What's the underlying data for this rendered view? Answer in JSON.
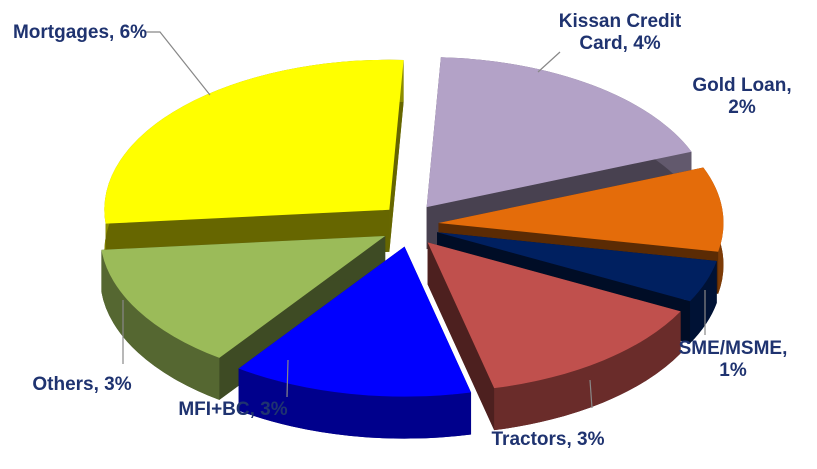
{
  "chart_data": {
    "type": "pie",
    "values": [
      4,
      2,
      1,
      3,
      3,
      3,
      6
    ],
    "value_labels": [
      "Kissan Credit Card, 4%",
      "Gold Loan, 2%",
      "SME/MSME, 1%",
      "Tractors, 3%",
      "MFI+BC, 3%",
      "Others, 3%",
      "Mortgages, 6%"
    ],
    "colors": [
      "#b3a2c7",
      "#e46c0a",
      "#002060",
      "#c0504d",
      "#0000ff",
      "#9bbb59",
      "#ffff00"
    ]
  }
}
